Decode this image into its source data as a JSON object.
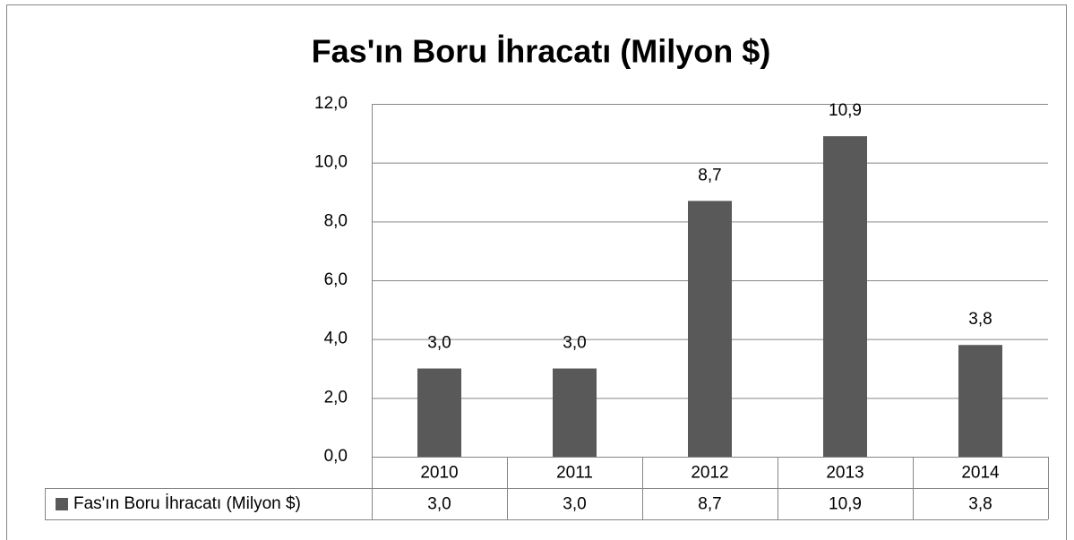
{
  "chart_data": {
    "type": "bar",
    "title": "Fas'ın Boru İhracatı (Milyon $)",
    "categories": [
      "2010",
      "2011",
      "2012",
      "2013",
      "2014"
    ],
    "series": [
      {
        "name": "Fas'ın Boru İhracatı (Milyon $)",
        "color": "#595959",
        "values": [
          3.0,
          3.0,
          8.7,
          10.9,
          3.8
        ],
        "value_labels": [
          "3,0",
          "3,0",
          "8,7",
          "10,9",
          "3,8"
        ]
      }
    ],
    "ylim": [
      0,
      12
    ],
    "yticks": [
      {
        "value": 0,
        "label": "0,0"
      },
      {
        "value": 2,
        "label": "2,0"
      },
      {
        "value": 4,
        "label": "4,0"
      },
      {
        "value": 6,
        "label": "6,0"
      },
      {
        "value": 8,
        "label": "8,0"
      },
      {
        "value": 10,
        "label": "10,0"
      },
      {
        "value": 12,
        "label": "12,0"
      }
    ],
    "grid": true
  }
}
